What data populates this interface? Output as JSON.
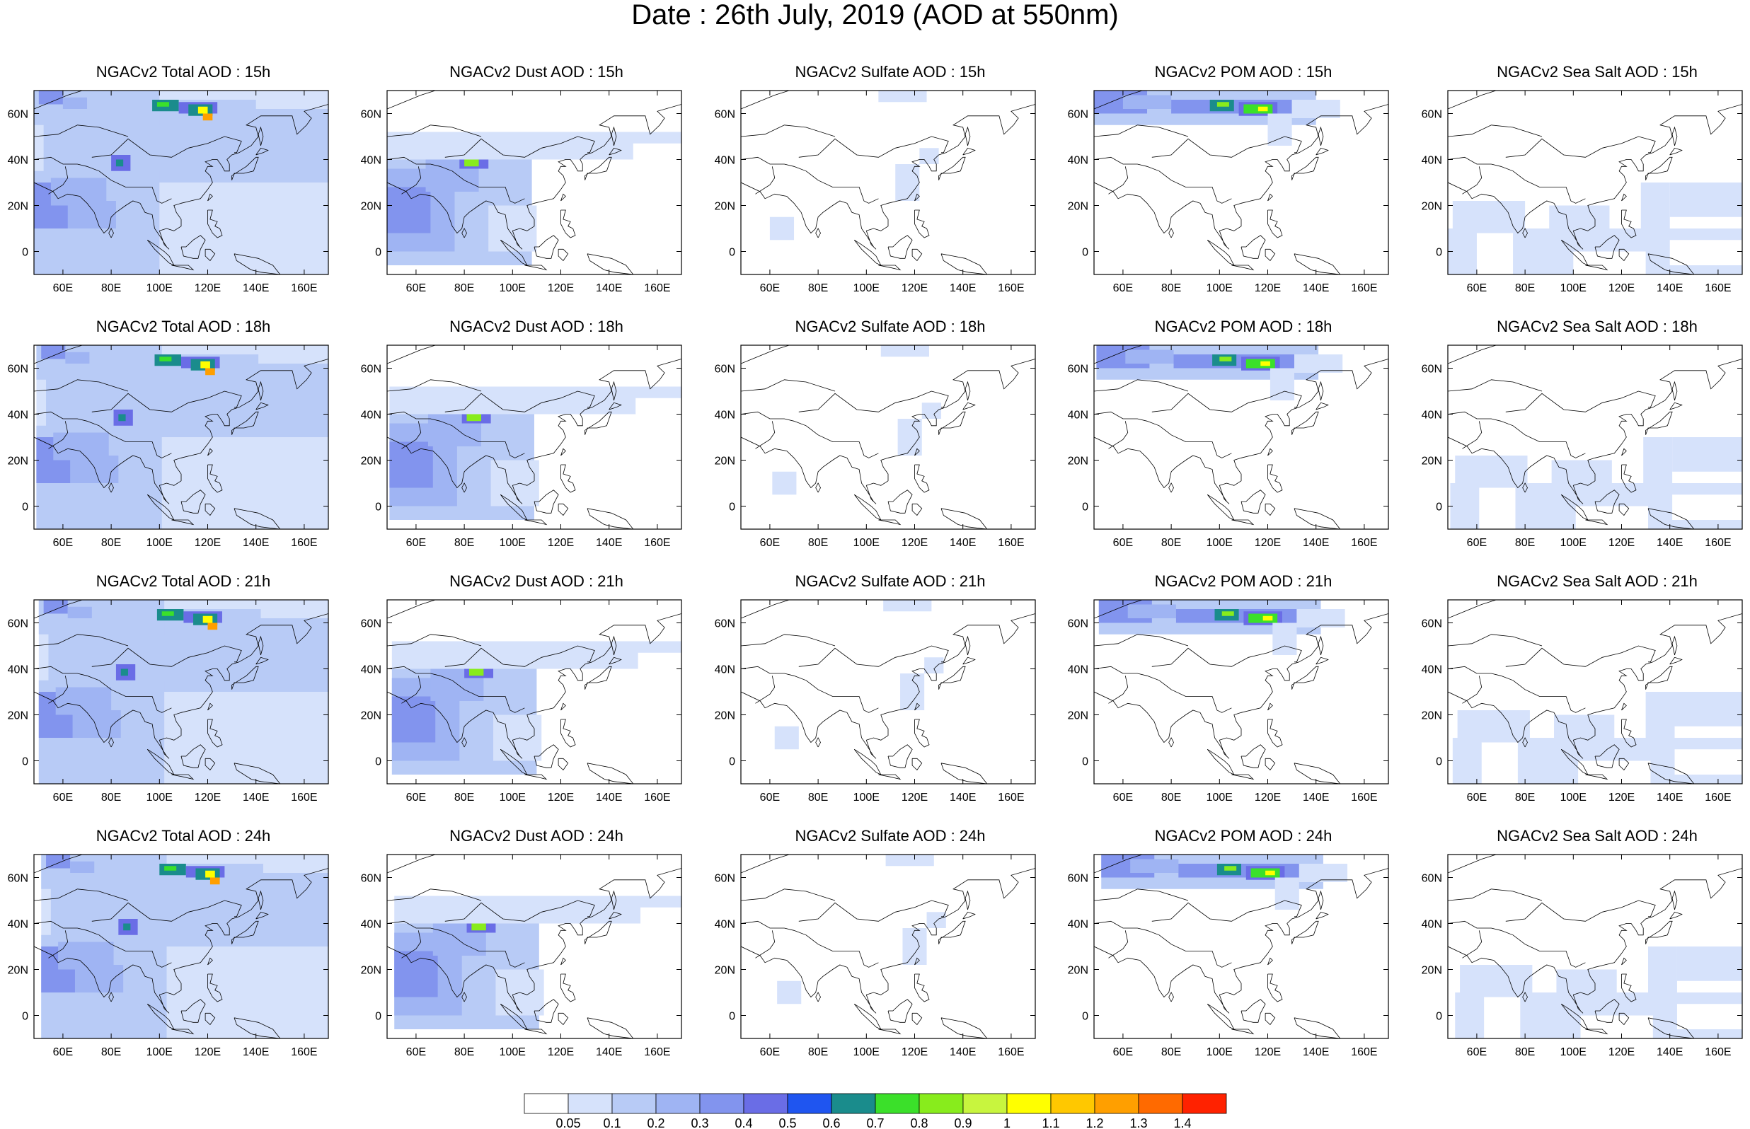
{
  "title": "Date : 26th July, 2019 (AOD at 550nm)",
  "rows": [
    "15h",
    "18h",
    "21h",
    "24h"
  ],
  "panels": [
    [
      "NGACv2 Total AOD : 15h",
      "NGACv2 Dust AOD : 15h",
      "NGACv2 Sulfate AOD : 15h",
      "NGACv2 POM AOD : 15h",
      "NGACv2 Sea Salt AOD : 15h"
    ],
    [
      "NGACv2 Total AOD : 18h",
      "NGACv2 Dust AOD : 18h",
      "NGACv2 Sulfate AOD : 18h",
      "NGACv2 POM AOD : 18h",
      "NGACv2 Sea Salt AOD : 18h"
    ],
    [
      "NGACv2 Total AOD : 21h",
      "NGACv2 Dust AOD : 21h",
      "NGACv2 Sulfate AOD : 21h",
      "NGACv2 POM AOD : 21h",
      "NGACv2 Sea Salt AOD : 21h"
    ],
    [
      "NGACv2 Total AOD : 24h",
      "NGACv2 Dust AOD : 24h",
      "NGACv2 Sulfate AOD : 24h",
      "NGACv2 POM AOD : 24h",
      "NGACv2 Sea Salt  AOD : 24h"
    ]
  ],
  "panel_fields": [
    "total",
    "dust",
    "sulfate",
    "pom",
    "seasalt"
  ],
  "map": {
    "lon_range": [
      48,
      170
    ],
    "lat_range": [
      -10,
      70
    ],
    "lon_ticks": [
      "60E",
      "80E",
      "100E",
      "120E",
      "140E",
      "160E"
    ],
    "lon_tick_values": [
      60,
      80,
      100,
      120,
      140,
      160
    ],
    "lat_ticks": [
      "0",
      "20N",
      "40N",
      "60N"
    ],
    "lat_tick_values": [
      0,
      20,
      40,
      60
    ]
  },
  "colorbar": {
    "labels": [
      "0.05",
      "0.1",
      "0.2",
      "0.3",
      "0.4",
      "0.5",
      "0.6",
      "0.7",
      "0.8",
      "0.9",
      "1",
      "1.1",
      "1.2",
      "1.3",
      "1.4"
    ],
    "colors": [
      "#ffffff",
      "#d6e2fb",
      "#b8cbf6",
      "#9fb4f3",
      "#8294ee",
      "#6a6de6",
      "#1f55f0",
      "#1a8c8c",
      "#3be02a",
      "#88ec1c",
      "#c8f53e",
      "#ffff00",
      "#ffc800",
      "#ff9f00",
      "#ff6a00",
      "#ff2200"
    ]
  }
}
